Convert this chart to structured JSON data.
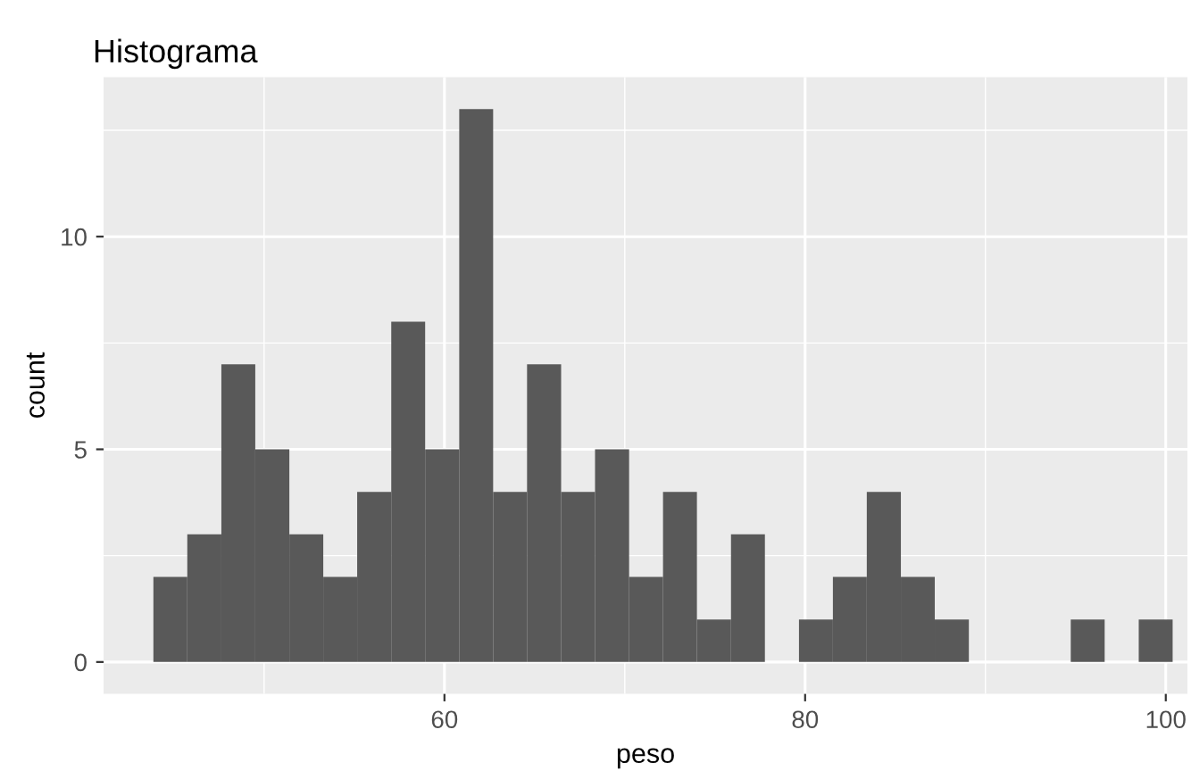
{
  "chart_data": {
    "type": "histogram",
    "title": "Histograma",
    "xlabel": "peso",
    "ylabel": "count",
    "bins": [
      43.86,
      45.74,
      47.63,
      49.51,
      51.4,
      53.28,
      55.16,
      57.05,
      58.93,
      60.82,
      62.7,
      64.58,
      66.47,
      68.35,
      70.24,
      72.12,
      74.0,
      75.89,
      77.77,
      79.66,
      81.54,
      83.42,
      85.31,
      87.19,
      89.08,
      90.96,
      92.84,
      94.73,
      96.61,
      98.5,
      100.38
    ],
    "values": [
      2,
      3,
      7,
      5,
      3,
      2,
      4,
      8,
      5,
      13,
      4,
      7,
      4,
      5,
      2,
      4,
      1,
      3,
      0,
      1,
      2,
      4,
      2,
      1,
      0,
      0,
      0,
      1,
      0,
      1
    ],
    "color": "#595959",
    "xlim": [
      41.1,
      101.2
    ],
    "ylim": [
      -0.75,
      13.75
    ],
    "xticks": [
      60,
      80,
      100
    ],
    "yticks": [
      0,
      5,
      10
    ],
    "grid": true
  }
}
